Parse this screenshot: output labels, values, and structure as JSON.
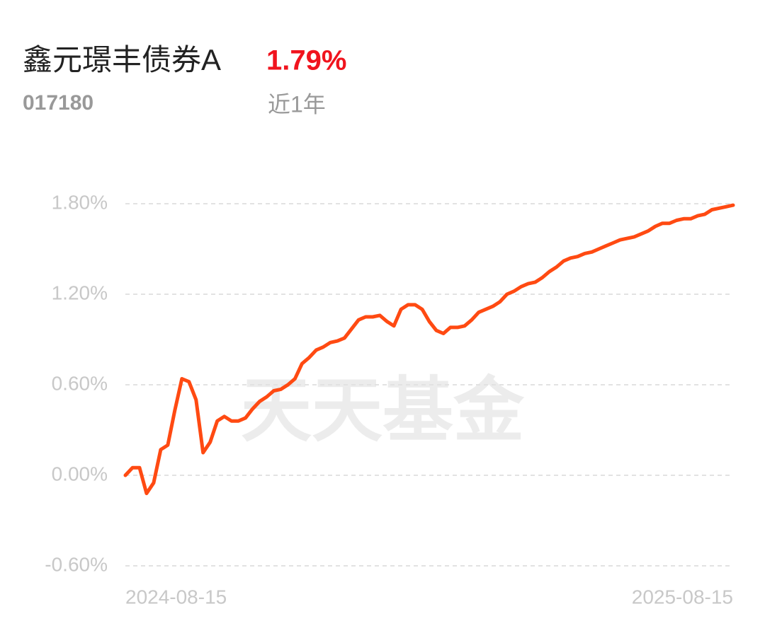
{
  "header": {
    "title": "鑫元璟丰债券A",
    "return": "1.79%",
    "code": "017180",
    "period": "近1年"
  },
  "watermark": "天天基金",
  "chart_data": {
    "type": "line",
    "color": "#ff4a12",
    "grid": true,
    "ylim": [
      -0.6,
      1.8
    ],
    "yticks": [
      {
        "value": -0.6,
        "label": "-0.60%"
      },
      {
        "value": 0,
        "label": "0.00%"
      },
      {
        "value": 0.6,
        "label": "0.60%"
      },
      {
        "value": 1.2,
        "label": "1.20%"
      },
      {
        "value": 1.8,
        "label": "1.80%"
      }
    ],
    "categories": [
      "2024-08-15",
      null,
      null,
      null,
      null,
      null,
      null,
      null,
      null,
      null,
      null,
      null,
      null,
      null,
      null,
      null,
      null,
      null,
      null,
      null,
      null,
      null,
      null,
      null,
      null,
      null,
      null,
      null,
      null,
      null,
      null,
      null,
      null,
      null,
      null,
      null,
      null,
      null,
      null,
      null,
      null,
      null,
      null,
      null,
      null,
      null,
      null,
      null,
      null,
      null,
      null,
      null,
      null,
      null,
      null,
      null,
      null,
      null,
      null,
      null,
      null,
      null,
      null,
      null,
      null,
      null,
      null,
      null,
      null,
      null,
      null,
      null,
      null,
      null,
      null,
      null,
      null,
      null,
      null,
      null,
      null,
      null,
      null,
      null,
      null,
      null,
      "2025-08-15"
    ],
    "values": [
      0.0,
      0.05,
      0.05,
      -0.12,
      -0.05,
      0.17,
      0.2,
      0.43,
      0.64,
      0.62,
      0.5,
      0.15,
      0.22,
      0.36,
      0.39,
      0.36,
      0.36,
      0.38,
      0.44,
      0.49,
      0.52,
      0.56,
      0.57,
      0.6,
      0.64,
      0.74,
      0.78,
      0.83,
      0.85,
      0.88,
      0.89,
      0.91,
      0.97,
      1.03,
      1.05,
      1.05,
      1.06,
      1.02,
      0.99,
      1.1,
      1.13,
      1.13,
      1.1,
      1.02,
      0.96,
      0.94,
      0.98,
      0.98,
      0.99,
      1.03,
      1.08,
      1.1,
      1.12,
      1.15,
      1.2,
      1.22,
      1.25,
      1.27,
      1.28,
      1.31,
      1.35,
      1.38,
      1.42,
      1.44,
      1.45,
      1.47,
      1.48,
      1.5,
      1.52,
      1.54,
      1.56,
      1.57,
      1.58,
      1.6,
      1.62,
      1.65,
      1.67,
      1.67,
      1.69,
      1.7,
      1.7,
      1.72,
      1.73,
      1.76,
      1.77,
      1.78,
      1.79
    ]
  }
}
